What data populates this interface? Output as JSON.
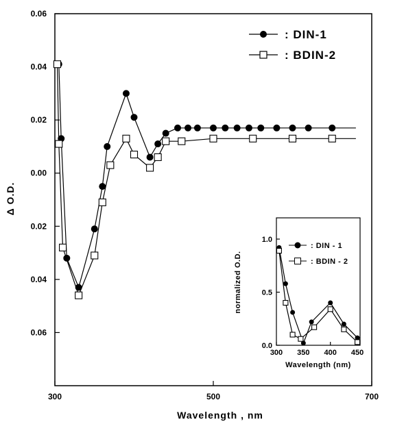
{
  "chart_data": [
    {
      "type": "line",
      "xlabel": "Wavelength , nm",
      "ylabel": "Δ O.D.",
      "xlim": [
        300,
        700
      ],
      "ylim": [
        -0.08,
        0.06
      ],
      "x_ticks": [
        300,
        500,
        700
      ],
      "x_tick_labels": [
        "300",
        "500",
        "700"
      ],
      "y_ticks": [
        0.06,
        0.04,
        0.02,
        0.0,
        -0.02,
        -0.04,
        -0.06
      ],
      "y_tick_labels": [
        "0.06",
        "0.04",
        "0.02",
        "0.00",
        "0.02",
        "0.04",
        "0.06"
      ],
      "grid": false,
      "legend_position": "top-right",
      "series": [
        {
          "name": "DIN-1",
          "legend_label": ": DIN-1",
          "marker": "filled-circle",
          "x": [
            305,
            308,
            315,
            330,
            350,
            360,
            366,
            390,
            400,
            420,
            430,
            440,
            455,
            468,
            480,
            500,
            515,
            530,
            545,
            560,
            580,
            600,
            620,
            650
          ],
          "y": [
            0.041,
            0.013,
            -0.032,
            -0.043,
            -0.021,
            -0.005,
            0.01,
            0.03,
            0.021,
            0.006,
            0.011,
            0.015,
            0.017,
            0.017,
            0.017,
            0.017,
            0.017,
            0.017,
            0.017,
            0.017,
            0.017,
            0.017,
            0.017,
            0.017
          ]
        },
        {
          "name": "BDIN-2",
          "legend_label": ": BDIN-2",
          "marker": "open-square",
          "x": [
            303,
            305,
            310,
            330,
            350,
            360,
            370,
            390,
            400,
            420,
            430,
            440,
            460,
            500,
            550,
            600,
            650
          ],
          "y": [
            0.041,
            0.011,
            -0.028,
            -0.046,
            -0.031,
            -0.011,
            0.003,
            0.013,
            0.007,
            0.002,
            0.006,
            0.012,
            0.012,
            0.013,
            0.013,
            0.013,
            0.013
          ]
        }
      ]
    },
    {
      "type": "line",
      "xlabel": "Wavelength (nm)",
      "ylabel": "normalized O.D.",
      "xlim": [
        300,
        455
      ],
      "ylim": [
        0,
        1.2
      ],
      "x_ticks": [
        300,
        350,
        400,
        450
      ],
      "x_tick_labels": [
        "300",
        "350",
        "400",
        "450"
      ],
      "y_ticks": [
        0.0,
        0.5,
        1.0
      ],
      "y_tick_labels": [
        "0.0",
        "0.5",
        "1.0"
      ],
      "grid": false,
      "legend_position": "top-right",
      "series": [
        {
          "name": "DIN-1",
          "legend_label": ": DIN - 1",
          "marker": "filled-circle",
          "x": [
            305,
            317,
            330,
            350,
            365,
            400,
            425,
            450
          ],
          "y": [
            0.92,
            0.58,
            0.31,
            0.02,
            0.22,
            0.4,
            0.2,
            0.07
          ]
        },
        {
          "name": "BDIN-2",
          "legend_label": ": BDIN - 2",
          "marker": "open-square",
          "x": [
            305,
            317,
            330,
            345,
            370,
            400,
            425,
            450
          ],
          "y": [
            0.89,
            0.4,
            0.1,
            0.06,
            0.17,
            0.34,
            0.15,
            0.03
          ]
        }
      ]
    }
  ]
}
